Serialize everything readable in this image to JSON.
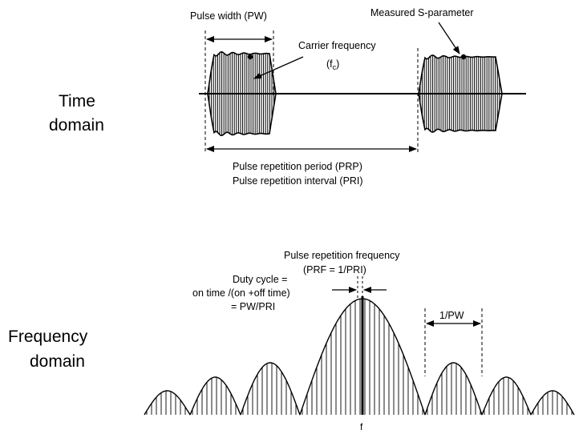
{
  "time_domain": {
    "side_label_line1": "Time",
    "side_label_line2": "domain",
    "pulse_width_label": "Pulse width (PW)",
    "measured_label": "Measured S-parameter",
    "carrier_label": "Carrier frequency",
    "carrier_symbol_base": "(f",
    "carrier_symbol_sub": "c",
    "carrier_symbol_close": ")",
    "prp_label": "Pulse repetition period (PRP)",
    "pri_label": "Pulse repetition interval (PRI)"
  },
  "frequency_domain": {
    "side_label_line1": "Frequency",
    "side_label_line2": "domain",
    "prf_label_line1": "Pulse repetition frequency",
    "prf_label_line2": "(PRF = 1/PRI)",
    "duty_line1": "Duty cycle =",
    "duty_line2": "on time /(on +off time)",
    "duty_line3": "= PW/PRI",
    "inverse_pw_label": "1/PW",
    "center_axis_label": "f"
  },
  "colors": {
    "ink": "#000000",
    "background": "#ffffff"
  }
}
